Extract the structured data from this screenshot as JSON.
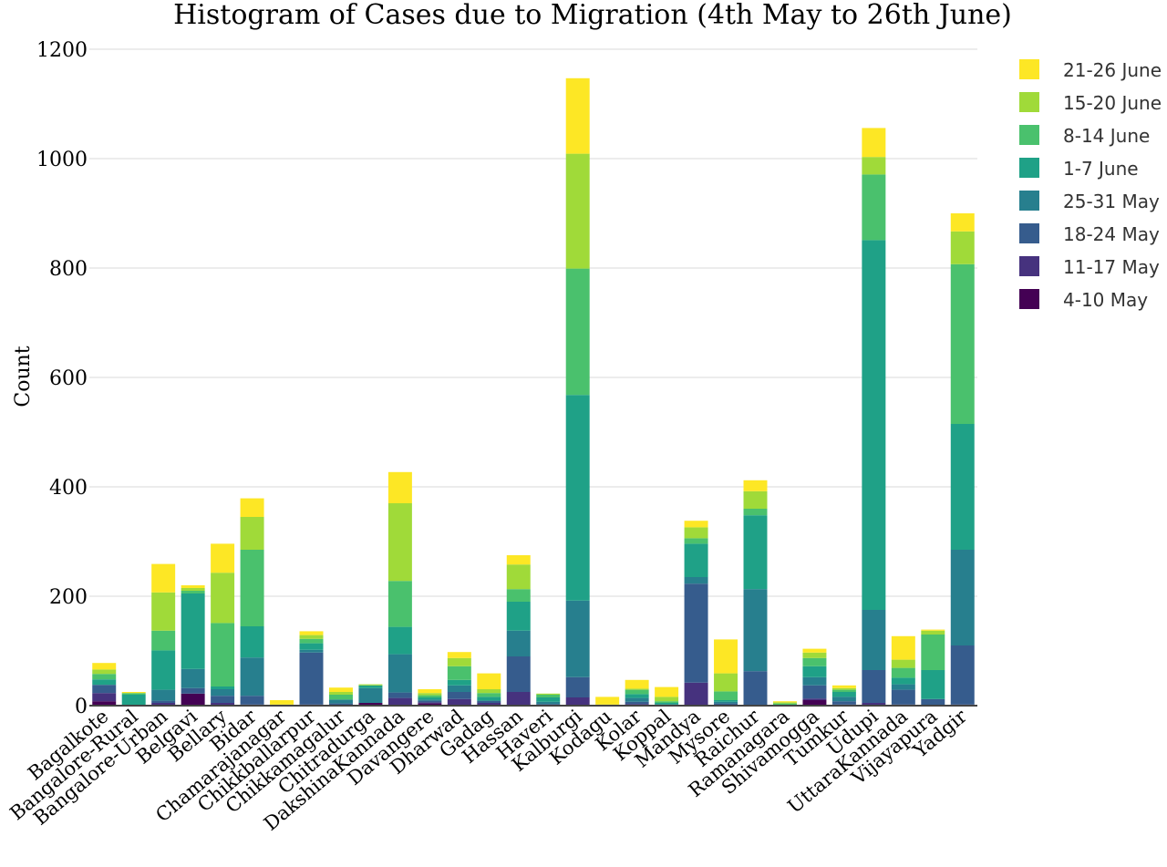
{
  "chart_data": {
    "type": "bar",
    "stacked": true,
    "title": "Histogram of Cases due to Migration (4th May to 26th June)",
    "xlabel": "",
    "ylabel": "Count",
    "ylim": [
      0,
      1200
    ],
    "yticks": [
      0,
      200,
      400,
      600,
      800,
      1000,
      1200
    ],
    "grid": true,
    "legend_position": "right",
    "categories": [
      "Bagalkote",
      "Bangalore-Rural",
      "Bangalore-Urban",
      "Belgavi",
      "Bellary",
      "Bidar",
      "Chamarajanagar",
      "Chikkballarpur",
      "Chikkamagalur",
      "Chitradurga",
      "DakshinaKannada",
      "Davangere",
      "Dharwad",
      "Gadag",
      "Hassan",
      "Haveri",
      "Kalburgi",
      "Kodagu",
      "Kolar",
      "Koppal",
      "Mandya",
      "Mysore",
      "Raichur",
      "Ramanagara",
      "Shivamogga",
      "Tumkur",
      "Udupi",
      "UttaraKannada",
      "Vijayapura",
      "Yadgir"
    ],
    "series": [
      {
        "name": "4-10 May",
        "color": "#440154",
        "values": [
          8,
          0,
          0,
          22,
          0,
          0,
          0,
          0,
          0,
          5,
          0,
          4,
          0,
          0,
          0,
          0,
          0,
          0,
          0,
          0,
          0,
          0,
          0,
          0,
          10,
          0,
          0,
          0,
          0,
          0
        ]
      },
      {
        "name": "11-17 May",
        "color": "#46327e",
        "values": [
          15,
          0,
          5,
          0,
          5,
          2,
          0,
          2,
          0,
          0,
          14,
          2,
          12,
          5,
          25,
          0,
          15,
          0,
          3,
          2,
          42,
          0,
          0,
          0,
          3,
          2,
          5,
          2,
          0,
          2
        ]
      },
      {
        "name": "18-24 May",
        "color": "#365c8d",
        "values": [
          15,
          0,
          4,
          10,
          13,
          16,
          0,
          95,
          4,
          0,
          10,
          3,
          13,
          4,
          65,
          3,
          37,
          0,
          4,
          0,
          181,
          4,
          63,
          0,
          24,
          6,
          60,
          27,
          12,
          108
        ]
      },
      {
        "name": "25-31 May",
        "color": "#277f8e",
        "values": [
          0,
          0,
          20,
          35,
          12,
          70,
          0,
          5,
          7,
          27,
          70,
          2,
          12,
          0,
          47,
          4,
          140,
          0,
          7,
          0,
          12,
          3,
          150,
          0,
          15,
          8,
          110,
          10,
          0,
          175
        ]
      },
      {
        "name": "1-7 June",
        "color": "#1fa187",
        "values": [
          10,
          20,
          72,
          138,
          5,
          57,
          0,
          12,
          0,
          5,
          50,
          4,
          10,
          7,
          53,
          8,
          376,
          0,
          7,
          3,
          61,
          3,
          135,
          1,
          20,
          9,
          676,
          12,
          53,
          230
        ]
      },
      {
        "name": "8-14 June",
        "color": "#4ac16d",
        "values": [
          10,
          3,
          36,
          5,
          116,
          140,
          0,
          8,
          9,
          0,
          84,
          4,
          25,
          7,
          23,
          5,
          231,
          0,
          8,
          3,
          10,
          16,
          12,
          3,
          15,
          4,
          120,
          18,
          65,
          292
        ]
      },
      {
        "name": "15-20 June",
        "color": "#a0da39",
        "values": [
          8,
          0,
          70,
          5,
          92,
          60,
          2,
          7,
          5,
          2,
          142,
          4,
          15,
          7,
          45,
          2,
          210,
          2,
          2,
          8,
          20,
          33,
          32,
          2,
          10,
          3,
          32,
          15,
          7,
          60
        ]
      },
      {
        "name": "21-26 June",
        "color": "#fde725",
        "values": [
          12,
          2,
          52,
          5,
          53,
          34,
          8,
          7,
          8,
          0,
          57,
          7,
          11,
          29,
          17,
          0,
          138,
          14,
          16,
          18,
          12,
          62,
          20,
          2,
          7,
          5,
          53,
          43,
          2,
          33
        ]
      }
    ]
  }
}
